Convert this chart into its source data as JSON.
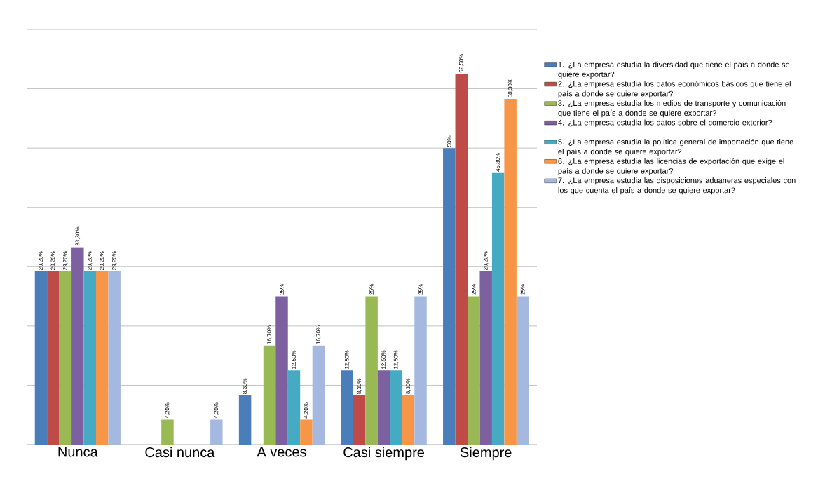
{
  "chart_data": {
    "type": "bar",
    "categories": [
      "Nunca",
      "Casi nunca",
      "A veces",
      "Casi siempre",
      "Siempre"
    ],
    "series": [
      {
        "name": "1. ¿La empresa estudia la diversidad que tiene el país a donde se quiere exportar?",
        "color": "#4a7ebb",
        "values": [
          29.2,
          null,
          8.3,
          12.5,
          50
        ],
        "value_labels": [
          "29,20%",
          null,
          "8,30%",
          "12,50%",
          "50%"
        ]
      },
      {
        "name": "2. ¿La empresa estudia los datos económicos básicos que tiene el país a donde se quiere exportar?",
        "color": "#be4b48",
        "values": [
          29.2,
          null,
          null,
          8.3,
          62.5
        ],
        "value_labels": [
          "29,20%",
          null,
          null,
          "8,30%",
          "62,50%"
        ]
      },
      {
        "name": "3. ¿La empresa estudia los medios de transporte y comunicación que tiene el país a donde se quiere exportar?",
        "color": "#98b954",
        "values": [
          29.2,
          4.2,
          16.7,
          25,
          25
        ],
        "value_labels": [
          "29,20%",
          "4,20%",
          "16,70%",
          "25%",
          "25%"
        ]
      },
      {
        "name": "4. ¿La empresa estudia los datos sobre el comercio exterior?",
        "color": "#7d60a0",
        "values": [
          33.3,
          null,
          25,
          12.5,
          29.2
        ],
        "value_labels": [
          "33,30%",
          null,
          "25%",
          "12,50%",
          "29,20%"
        ]
      },
      {
        "name": "5. ¿La empresa estudia la política general de importación que tiene el país a donde se quiere exportar?",
        "color": "#46aac5",
        "values": [
          29.2,
          null,
          12.5,
          12.5,
          45.8
        ],
        "value_labels": [
          "29,20%",
          null,
          "12,50%",
          "12,50%",
          "45,80%"
        ]
      },
      {
        "name": "6. ¿La empresa estudia las licencias de exportación que exige el país a donde se quiere exportar?",
        "color": "#f79646",
        "values": [
          29.2,
          null,
          4.2,
          8.3,
          58.3
        ],
        "value_labels": [
          "29,20%",
          null,
          "4,20%",
          "8,30%",
          "58,30%"
        ]
      },
      {
        "name": "7. ¿La empresa estudia las disposiciones aduaneras especiales con los que cuenta el país a donde se quiere exportar?",
        "color": "#a5b9e0",
        "values": [
          29.2,
          4.2,
          16.7,
          25,
          25
        ],
        "value_labels": [
          "29,20%",
          "4,20%",
          "16,70%",
          "25%",
          "25%"
        ]
      }
    ],
    "ylim": [
      0,
      70
    ],
    "yticks": [
      {
        "value": 0,
        "label": null
      },
      {
        "value": 10,
        "label": null
      },
      {
        "value": 20,
        "label": null
      },
      {
        "value": 30,
        "label": null
      },
      {
        "value": 40,
        "label": null
      },
      {
        "value": 50,
        "label": null
      },
      {
        "value": 60,
        "label": null
      },
      {
        "value": 70,
        "label": null
      }
    ],
    "grid": "y",
    "legend": "right",
    "tick_labels": "x"
  }
}
